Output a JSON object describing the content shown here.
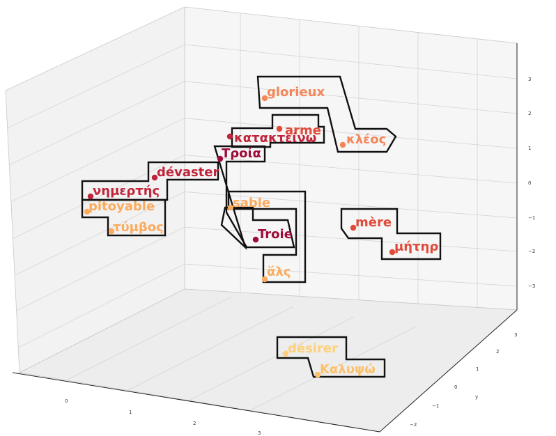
{
  "chart_data": {
    "type": "scatter",
    "projection": "3d",
    "grid": true,
    "x_ticks": [
      "0",
      "1",
      "2",
      "3"
    ],
    "y_ticks": [
      "−2",
      "−1",
      "0",
      "1",
      "2",
      "3"
    ],
    "z_ticks": [
      "3",
      "2",
      "1",
      "0",
      "−1",
      "−2",
      "−3"
    ],
    "ylabel": "y",
    "points": [
      {
        "label": "glorieux",
        "color": "#f4875a"
      },
      {
        "label": "arme",
        "color": "#e04a3a"
      },
      {
        "label": "κλέος",
        "color": "#f4875a"
      },
      {
        "label": "κατακτείνω",
        "color": "#c0243a"
      },
      {
        "label": "Τροία",
        "color": "#9e0c3a"
      },
      {
        "label": "dévaster",
        "color": "#c0243a"
      },
      {
        "label": "νημερτής",
        "color": "#c0243a"
      },
      {
        "label": "pitoyable",
        "color": "#fbab5e"
      },
      {
        "label": "τύμβος",
        "color": "#fbab5e"
      },
      {
        "label": "sable",
        "color": "#fbab5e"
      },
      {
        "label": "Troie",
        "color": "#9e0c3a"
      },
      {
        "label": "ἅλς",
        "color": "#fbab5e"
      },
      {
        "label": "mère",
        "color": "#e04a3a"
      },
      {
        "label": "μήτηρ",
        "color": "#e04a3a"
      },
      {
        "label": "désirer",
        "color": "#fdd17a"
      },
      {
        "label": "Καλυψώ",
        "color": "#fdc06a"
      }
    ]
  }
}
